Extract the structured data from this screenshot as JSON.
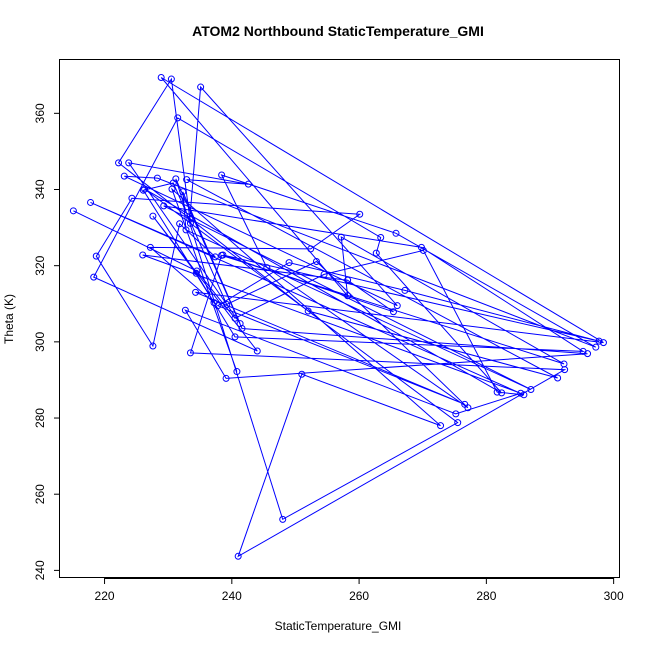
{
  "chart_data": {
    "type": "scatter",
    "title": "ATOM2 Northbound StaticTemperature_GMI",
    "xlabel": "StaticTemperature_GMI",
    "ylabel": "Theta (K)",
    "xlim": [
      213,
      301
    ],
    "ylim": [
      238,
      374
    ],
    "xticks": [
      220,
      240,
      260,
      280,
      300
    ],
    "yticks": [
      240,
      260,
      280,
      300,
      320,
      340,
      360
    ],
    "grid": false,
    "legend": "none",
    "series": [
      {
        "color": "#0000ff",
        "style": "lines+points",
        "x": [
          215.1,
          234.5,
          240.5,
          254.5,
          270.1,
          281.7,
          285.9,
          217.8,
          237.4,
          231.8,
          227.6,
          218.7,
          224.3,
          260.1,
          252.4,
          227.2,
          237.2,
          226.1,
          230.8,
          239.2,
          253.3,
          277.1,
          245.5,
          238.4,
          265.8,
          297.2,
          228.3,
          223.1,
          266.0,
          235.1,
          233.4,
          233.5,
          230.5,
          222.2,
          252.0,
          291.2,
          232.9,
          242.6,
          223.8,
          241.3,
          232.3,
          232.8,
          287.0,
          229.3,
          269.8,
          295.2,
          240.5,
          234.4,
          227.6,
          244.0,
          218.3,
          231.5,
          263.4,
          262.7,
          282.4,
          226.3,
          275.5,
          248.0,
          231.2,
          241.6,
          295.9,
          239.1,
          232.7,
          275.2,
          285.4,
          226.0,
          258.2,
          265.4,
          238.6,
          297.7,
          267.2,
          249.0,
          237.8,
          276.6,
          234.3,
          298.4,
          228.9,
          258.2,
          257.2,
          292.2,
          238.4,
          233.5,
          292.3,
          241.0,
          251.0,
          272.8,
          230.6,
          240.8
        ],
        "y": [
          334.4,
          318.6,
          306.2,
          317.7,
          324.0,
          286.8,
          286.1,
          336.6,
          322.3,
          331.0,
          298.9,
          322.5,
          337.7,
          333.5,
          324.4,
          324.8,
          310.3,
          339.8,
          341.7,
          309.8,
          321.1,
          282.7,
          319.5,
          343.8,
          328.5,
          298.6,
          343.0,
          343.5,
          309.5,
          366.9,
          332.2,
          331.1,
          369.0,
          347.0,
          308.1,
          290.5,
          342.6,
          341.4,
          347.0,
          304.8,
          339.4,
          329.4,
          287.5,
          335.7,
          324.8,
          297.5,
          301.3,
          318.0,
          333.0,
          297.6,
          317.0,
          358.8,
          327.4,
          323.3,
          286.6,
          340.1,
          278.8,
          253.4,
          342.8,
          303.5,
          296.9,
          290.4,
          308.3,
          281.1,
          286.5,
          322.8,
          316.2,
          307.9,
          322.8,
          300.2,
          313.5,
          320.8,
          309.5,
          283.6,
          313.0,
          299.8,
          369.4,
          312.1,
          327.5,
          294.2,
          322.7,
          297.1,
          292.7,
          243.7,
          291.5,
          278.0,
          340.1,
          292.2
        ]
      }
    ]
  }
}
